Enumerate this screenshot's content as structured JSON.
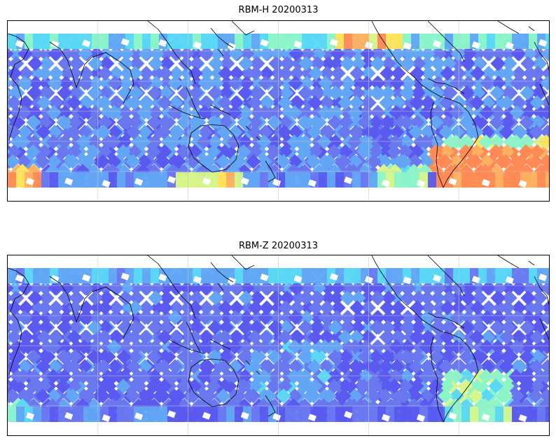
{
  "panels": [
    {
      "title": "RBM-H 20200313",
      "colormap": [
        "#4b2bf0",
        "#5a5af0",
        "#6a78f0",
        "#62a6f5",
        "#5ad8f5",
        "#8cf5c8",
        "#d6f58a",
        "#ffe35a",
        "#ffb060",
        "#ff8a55"
      ],
      "hot_regions": [
        "south-atlantic",
        "south-pacific",
        "far-west-southern"
      ]
    },
    {
      "title": "RBM-Z 20200313",
      "colormap": [
        "#4b2bf0",
        "#5a5af0",
        "#6a78f0",
        "#62a6f5",
        "#5ad8f5",
        "#8cf5c8",
        "#d6f58a",
        "#ffe35a"
      ],
      "hot_regions": [
        "south-atlantic-moderate"
      ]
    }
  ],
  "map": {
    "projection": "equirectangular",
    "longitude_range": [
      -180,
      180
    ],
    "gridlines": true,
    "coastline_color": "#000000"
  }
}
